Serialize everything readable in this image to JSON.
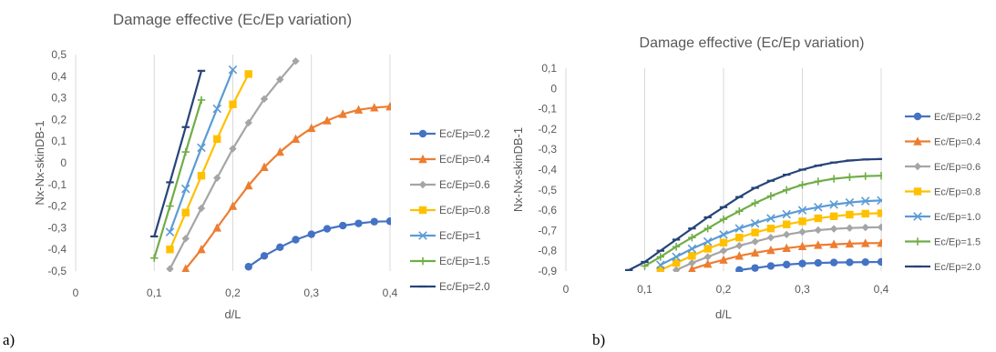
{
  "panels": [
    {
      "letter": "a)"
    },
    {
      "letter": "b)"
    }
  ],
  "chart_data": [
    {
      "type": "line",
      "title": "Damage effective (Ec/Ep variation)",
      "xlabel": "d/L",
      "ylabel": "Nx-Nx-skinDB-1",
      "xlim": [
        0,
        0.4
      ],
      "ylim": [
        -0.5,
        0.5
      ],
      "x_ticks": [
        0,
        0.1,
        0.2,
        0.3,
        0.4
      ],
      "x_tick_labels": [
        "0",
        "0,1",
        "0,2",
        "0,3",
        "0,4"
      ],
      "y_ticks": [
        -0.5,
        -0.4,
        -0.3,
        -0.2,
        -0.1,
        0,
        0.1,
        0.2,
        0.3,
        0.4,
        0.5
      ],
      "y_tick_labels": [
        "-0,5",
        "-0,4",
        "-0,3",
        "-0,2",
        "-0,1",
        "0",
        "0,1",
        "0,2",
        "0,3",
        "0,4",
        "0,5"
      ],
      "grid": "vertical",
      "legend": "right",
      "series": [
        {
          "name": "Ec/Ep=0.2",
          "color": "#4472C4",
          "marker": "circle",
          "x": [
            0.22,
            0.24,
            0.26,
            0.28,
            0.3,
            0.32,
            0.34,
            0.36,
            0.38,
            0.4
          ],
          "y": [
            -0.48,
            -0.43,
            -0.39,
            -0.355,
            -0.33,
            -0.305,
            -0.29,
            -0.28,
            -0.272,
            -0.27
          ]
        },
        {
          "name": "Ec/Ep=0.4",
          "color": "#ED7D31",
          "marker": "triangle",
          "x": [
            0.14,
            0.16,
            0.18,
            0.2,
            0.22,
            0.24,
            0.26,
            0.28,
            0.3,
            0.32,
            0.34,
            0.36,
            0.38,
            0.4
          ],
          "y": [
            -0.49,
            -0.4,
            -0.3,
            -0.2,
            -0.105,
            -0.02,
            0.05,
            0.11,
            0.16,
            0.195,
            0.225,
            0.245,
            0.255,
            0.26
          ]
        },
        {
          "name": "Ec/Ep=0.6",
          "color": "#A5A5A5",
          "marker": "diamond",
          "x": [
            0.12,
            0.14,
            0.16,
            0.18,
            0.2,
            0.22,
            0.24,
            0.26,
            0.28
          ],
          "y": [
            -0.49,
            -0.35,
            -0.21,
            -0.07,
            0.065,
            0.185,
            0.295,
            0.385,
            0.47
          ]
        },
        {
          "name": "Ec/Ep=0.8",
          "color": "#FFC000",
          "marker": "square",
          "x": [
            0.12,
            0.14,
            0.16,
            0.18,
            0.2,
            0.22
          ],
          "y": [
            -0.4,
            -0.23,
            -0.06,
            0.11,
            0.27,
            0.41
          ]
        },
        {
          "name": "Ec/Ep=1",
          "color": "#5B9BD5",
          "marker": "x",
          "x": [
            0.12,
            0.14,
            0.16,
            0.18,
            0.2
          ],
          "y": [
            -0.32,
            -0.12,
            0.07,
            0.25,
            0.43
          ]
        },
        {
          "name": "Ec/Ep=1.5",
          "color": "#70AD47",
          "marker": "plus",
          "x": [
            0.1,
            0.12,
            0.14,
            0.16
          ],
          "y": [
            -0.44,
            -0.2,
            0.05,
            0.29
          ]
        },
        {
          "name": "Ec/Ep=2.0",
          "color": "#264478",
          "marker": "dash",
          "x": [
            0.1,
            0.12,
            0.14,
            0.16
          ],
          "y": [
            -0.34,
            -0.09,
            0.165,
            0.425
          ]
        }
      ]
    },
    {
      "type": "line",
      "title": "Damage effective (Ec/Ep variation)",
      "xlabel": "d/L",
      "ylabel": "Nx-Nx-skinDB-1",
      "xlim": [
        0,
        0.4
      ],
      "ylim": [
        -0.9,
        0.1
      ],
      "x_ticks": [
        0,
        0.1,
        0.2,
        0.3,
        0.4
      ],
      "x_tick_labels": [
        "0",
        "0,1",
        "0,2",
        "0,3",
        "0,4"
      ],
      "y_ticks": [
        -0.9,
        -0.8,
        -0.7,
        -0.6,
        -0.5,
        -0.4,
        -0.3,
        -0.2,
        -0.1,
        0,
        0.1
      ],
      "y_tick_labels": [
        "-0,9",
        "-0,8",
        "-0,7",
        "-0,6",
        "-0,5",
        "-0,4",
        "-0,3",
        "-0,2",
        "-0,1",
        "0",
        "0,1"
      ],
      "grid": "vertical",
      "legend": "right",
      "series": [
        {
          "name": "Ec/Ep=0.2",
          "color": "#4472C4",
          "marker": "circle",
          "x": [
            0.22,
            0.24,
            0.26,
            0.28,
            0.3,
            0.32,
            0.34,
            0.36,
            0.38,
            0.4
          ],
          "y": [
            -0.895,
            -0.885,
            -0.875,
            -0.868,
            -0.863,
            -0.86,
            -0.858,
            -0.857,
            -0.856,
            -0.855
          ]
        },
        {
          "name": "Ec/Ep=0.4",
          "color": "#ED7D31",
          "marker": "triangle",
          "x": [
            0.16,
            0.18,
            0.2,
            0.22,
            0.24,
            0.26,
            0.28,
            0.3,
            0.32,
            0.34,
            0.36,
            0.38,
            0.4
          ],
          "y": [
            -0.89,
            -0.865,
            -0.845,
            -0.825,
            -0.81,
            -0.797,
            -0.787,
            -0.778,
            -0.772,
            -0.768,
            -0.765,
            -0.763,
            -0.762
          ]
        },
        {
          "name": "Ec/Ep=0.6",
          "color": "#A5A5A5",
          "marker": "diamond",
          "x": [
            0.14,
            0.16,
            0.18,
            0.2,
            0.22,
            0.24,
            0.26,
            0.28,
            0.3,
            0.32,
            0.34,
            0.36,
            0.38,
            0.4
          ],
          "y": [
            -0.895,
            -0.86,
            -0.83,
            -0.8,
            -0.775,
            -0.755,
            -0.735,
            -0.72,
            -0.707,
            -0.698,
            -0.692,
            -0.688,
            -0.685,
            -0.684
          ]
        },
        {
          "name": "Ec/Ep=0.8",
          "color": "#FFC000",
          "marker": "square",
          "x": [
            0.12,
            0.14,
            0.16,
            0.18,
            0.2,
            0.22,
            0.24,
            0.26,
            0.28,
            0.3,
            0.32,
            0.34,
            0.36,
            0.38,
            0.4
          ],
          "y": [
            -0.895,
            -0.86,
            -0.825,
            -0.79,
            -0.76,
            -0.735,
            -0.71,
            -0.69,
            -0.67,
            -0.655,
            -0.64,
            -0.63,
            -0.622,
            -0.617,
            -0.615
          ]
        },
        {
          "name": "Ec/Ep=1.0",
          "color": "#5B9BD5",
          "marker": "x",
          "x": [
            0.12,
            0.14,
            0.16,
            0.18,
            0.2,
            0.22,
            0.24,
            0.26,
            0.28,
            0.3,
            0.32,
            0.34,
            0.36,
            0.38,
            0.4
          ],
          "y": [
            -0.87,
            -0.83,
            -0.79,
            -0.755,
            -0.72,
            -0.69,
            -0.665,
            -0.64,
            -0.62,
            -0.6,
            -0.585,
            -0.572,
            -0.562,
            -0.555,
            -0.552
          ]
        },
        {
          "name": "Ec/Ep=1.5",
          "color": "#70AD47",
          "marker": "plus",
          "x": [
            0.1,
            0.12,
            0.14,
            0.16,
            0.18,
            0.2,
            0.22,
            0.24,
            0.26,
            0.28,
            0.3,
            0.32,
            0.34,
            0.36,
            0.38,
            0.4
          ],
          "y": [
            -0.875,
            -0.83,
            -0.78,
            -0.735,
            -0.69,
            -0.645,
            -0.605,
            -0.565,
            -0.53,
            -0.5,
            -0.475,
            -0.458,
            -0.445,
            -0.437,
            -0.432,
            -0.43
          ]
        },
        {
          "name": "Ec/Ep=2.0",
          "color": "#264478",
          "marker": "dash",
          "x": [
            0.08,
            0.1,
            0.12,
            0.14,
            0.16,
            0.18,
            0.2,
            0.22,
            0.24,
            0.26,
            0.28,
            0.3,
            0.32,
            0.34,
            0.36,
            0.38,
            0.4
          ],
          "y": [
            -0.895,
            -0.855,
            -0.8,
            -0.745,
            -0.69,
            -0.635,
            -0.585,
            -0.535,
            -0.49,
            -0.455,
            -0.425,
            -0.4,
            -0.38,
            -0.365,
            -0.355,
            -0.35,
            -0.348
          ]
        }
      ]
    }
  ]
}
